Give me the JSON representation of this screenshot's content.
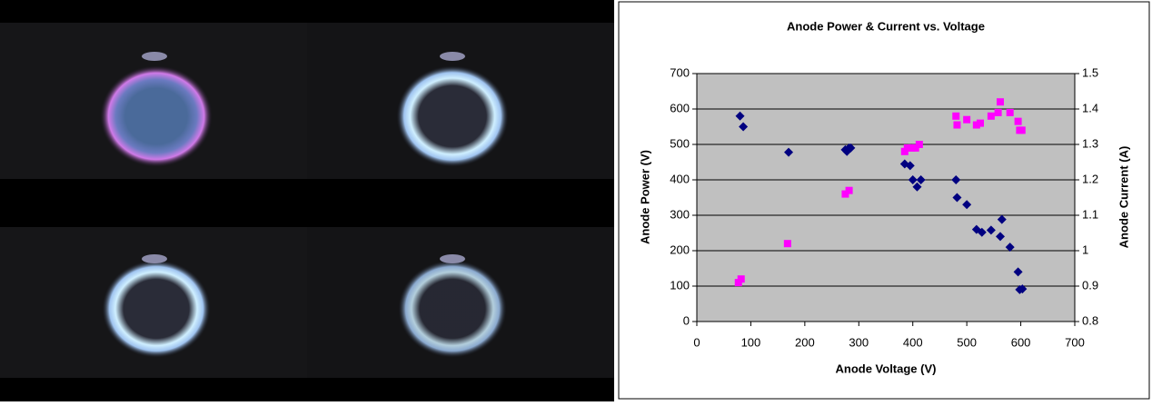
{
  "chart_data": {
    "type": "scatter",
    "title": "Anode Power & Current vs. Voltage",
    "xlabel": "Anode Voltage (V)",
    "ylabel": "Anode Power (V)",
    "y2label": "Anode Current (A)",
    "xlim": [
      0,
      700
    ],
    "xticks": [
      0,
      100,
      200,
      300,
      400,
      500,
      600,
      700
    ],
    "ylim": [
      0,
      700
    ],
    "yticks": [
      0,
      100,
      200,
      300,
      400,
      500,
      600,
      700
    ],
    "y2lim": [
      0.8,
      1.5
    ],
    "y2ticks": [
      0.8,
      0.9,
      1,
      1.1,
      1.2,
      1.3,
      1.4,
      1.5
    ],
    "grid": true,
    "series": [
      {
        "color": "#000080",
        "marker": "diamond",
        "x": [
          80,
          86,
          170,
          275,
          278,
          282,
          285,
          385,
          395,
          400,
          408,
          415,
          480,
          482,
          500,
          518,
          528,
          545,
          562,
          565,
          580,
          595,
          598,
          603
        ],
        "values": [
          580,
          550,
          478,
          485,
          480,
          490,
          490,
          445,
          440,
          400,
          380,
          400,
          400,
          350,
          330,
          260,
          252,
          258,
          240,
          288,
          210,
          140,
          90,
          92
        ]
      },
      {
        "color": "#ff00ff",
        "marker": "square",
        "axis": "y2",
        "x": [
          77,
          82,
          168,
          275,
          282,
          385,
          390,
          398,
          405,
          412,
          480,
          482,
          500,
          518,
          525,
          545,
          558,
          562,
          580,
          595,
          598,
          602
        ],
        "values": [
          0.91,
          0.92,
          1.02,
          1.16,
          1.17,
          1.28,
          1.29,
          1.29,
          1.29,
          1.3,
          1.38,
          1.355,
          1.37,
          1.355,
          1.36,
          1.38,
          1.39,
          1.42,
          1.39,
          1.365,
          1.34,
          1.34
        ]
      }
    ]
  }
}
